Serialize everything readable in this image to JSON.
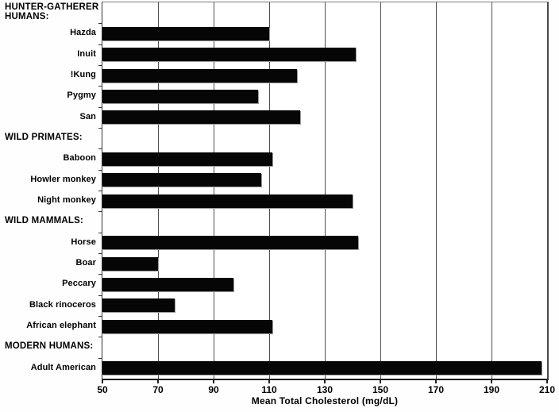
{
  "figure": {
    "background": "#ffffff",
    "bar_color": "#060606",
    "grid_color": "#4f4f4f",
    "text_color": "#000000"
  },
  "chart_data": {
    "type": "bar",
    "orientation": "horizontal",
    "title": "",
    "xlabel": "Mean Total Cholesterol (mg/dL)",
    "ylabel": "",
    "xlim": [
      50,
      210
    ],
    "xticks": [
      50,
      70,
      90,
      110,
      130,
      150,
      170,
      190,
      210
    ],
    "grid": true,
    "legend": false,
    "groups": [
      {
        "label": "HUNTER-GATHERER HUMANS:",
        "items": [
          {
            "label": "Hazda",
            "value": 110
          },
          {
            "label": "Inuit",
            "value": 141
          },
          {
            "label": "!Kung",
            "value": 120
          },
          {
            "label": "Pygmy",
            "value": 106
          },
          {
            "label": "San",
            "value": 121
          }
        ]
      },
      {
        "label": "WILD PRIMATES:",
        "items": [
          {
            "label": "Baboon",
            "value": 111
          },
          {
            "label": "Howler monkey",
            "value": 107
          },
          {
            "label": "Night monkey",
            "value": 140
          }
        ]
      },
      {
        "label": "WILD MAMMALS:",
        "items": [
          {
            "label": "Horse",
            "value": 142
          },
          {
            "label": "Boar",
            "value": 70
          },
          {
            "label": "Peccary",
            "value": 97
          },
          {
            "label": "Black rinoceros",
            "value": 76
          },
          {
            "label": "African elephant",
            "value": 111
          }
        ]
      },
      {
        "label": "MODERN HUMANS:",
        "items": [
          {
            "label": "Adult American",
            "value": 208
          }
        ]
      }
    ]
  }
}
